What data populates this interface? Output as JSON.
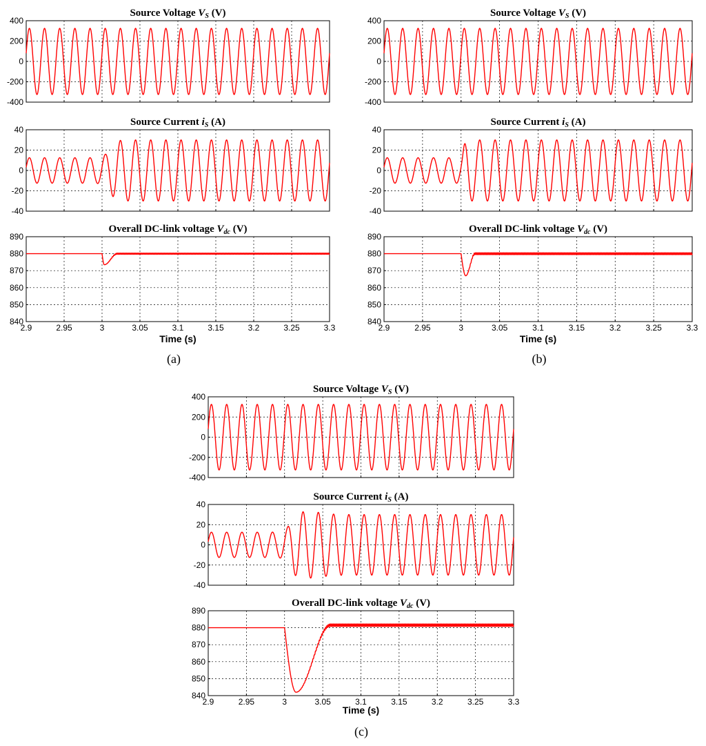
{
  "colors": {
    "trace": "#ff0000",
    "axis": "#000000",
    "grid": "#000000"
  },
  "chart_data": [
    {
      "type": "line",
      "caption": "(a)",
      "xlabel": "Time (s)",
      "xlim": [
        2.9,
        3.3
      ],
      "xticks": [
        "2.9",
        "2.95",
        "3",
        "3.05",
        "3.1",
        "3.15",
        "3.2",
        "3.25",
        "3.3"
      ],
      "grid": true,
      "subplots": [
        {
          "title_pre": "Source Voltage ",
          "title_var": "V",
          "title_sub": "S",
          "title_post": " (V)",
          "ylim": [
            -400,
            400
          ],
          "yticks": [
            "400",
            "200",
            "0",
            "-200",
            "-400"
          ],
          "series": {
            "kind": "sine",
            "freq_hz": 50,
            "amplitude": 325
          }
        },
        {
          "title_pre": "Source Current ",
          "title_var": "i",
          "title_sub": "S",
          "title_post": " (A)",
          "ylim": [
            -40,
            40
          ],
          "yticks": [
            "40",
            "20",
            "0",
            "-20",
            "-40"
          ],
          "series": {
            "kind": "sine_step",
            "freq_hz": 50,
            "amplitude_before": 12.5,
            "amplitude_after": 30,
            "step_time": 3.0,
            "rise_time": 0.02
          }
        },
        {
          "title_pre": "Overall DC-link voltage ",
          "title_var": "V",
          "title_sub": "dc",
          "title_post": " (V)",
          "ylim": [
            840,
            890
          ],
          "yticks": [
            "890",
            "880",
            "870",
            "860",
            "850",
            "840"
          ],
          "series": {
            "kind": "dip",
            "nominal": 880,
            "step_time": 3.0,
            "min_value": 873.5,
            "min_time": 3.003,
            "recovery_time": 3.02,
            "ripple": 0.4
          }
        }
      ]
    },
    {
      "type": "line",
      "caption": "(b)",
      "xlabel": "Time (s)",
      "xlim": [
        2.9,
        3.3
      ],
      "xticks": [
        "2.9",
        "2.95",
        "3",
        "3.05",
        "3.1",
        "3.15",
        "3.2",
        "3.25",
        "3.3"
      ],
      "grid": true,
      "subplots": [
        {
          "title_pre": "Source Voltage ",
          "title_var": "V",
          "title_sub": "S",
          "title_post": " (V)",
          "ylim": [
            -400,
            400
          ],
          "yticks": [
            "400",
            "200",
            "0",
            "-200",
            "-400"
          ],
          "series": {
            "kind": "sine",
            "freq_hz": 50,
            "amplitude": 325
          }
        },
        {
          "title_pre": "Source Current ",
          "title_var": "i",
          "title_sub": "S",
          "title_post": " (A)",
          "ylim": [
            -40,
            40
          ],
          "yticks": [
            "40",
            "20",
            "0",
            "-20",
            "-40"
          ],
          "series": {
            "kind": "sine_step",
            "freq_hz": 50,
            "amplitude_before": 12.5,
            "amplitude_after": 30,
            "step_time": 3.0,
            "rise_time": 0.006
          }
        },
        {
          "title_pre": "Overall DC-link voltage ",
          "title_var": "V",
          "title_sub": "dc",
          "title_post": " (V)",
          "ylim": [
            840,
            890
          ],
          "yticks": [
            "890",
            "880",
            "870",
            "860",
            "850",
            "840"
          ],
          "series": {
            "kind": "dip",
            "nominal": 880,
            "step_time": 3.0,
            "min_value": 867,
            "min_time": 3.006,
            "recovery_time": 3.018,
            "ripple": 0.6
          }
        }
      ]
    },
    {
      "type": "line",
      "caption": "(c)",
      "xlabel": "Time (s)",
      "xlim": [
        2.9,
        3.3
      ],
      "xticks": [
        "2.9",
        "2.95",
        "3",
        "3.05",
        "3.1",
        "3.15",
        "3.2",
        "3.25",
        "3.3"
      ],
      "grid": true,
      "subplots": [
        {
          "title_pre": "Source Voltage ",
          "title_var": "V",
          "title_sub": "S",
          "title_post": " (V)",
          "ylim": [
            -400,
            400
          ],
          "yticks": [
            "400",
            "200",
            "0",
            "-200",
            "-400"
          ],
          "series": {
            "kind": "sine",
            "freq_hz": 50,
            "amplitude": 325
          }
        },
        {
          "title_pre": "Source Current ",
          "title_var": "i",
          "title_sub": "S",
          "title_post": " (A)",
          "ylim": [
            -40,
            40
          ],
          "yticks": [
            "40",
            "20",
            "0",
            "-20",
            "-40"
          ],
          "series": {
            "kind": "sine_step",
            "freq_hz": 50,
            "amplitude_before": 12.5,
            "amplitude_after": 30,
            "peak_after": 33,
            "step_time": 3.0,
            "rise_time": 0.015
          }
        },
        {
          "title_pre": "Overall DC-link voltage ",
          "title_var": "V",
          "title_sub": "dc",
          "title_post": " (V)",
          "ylim": [
            840,
            890
          ],
          "yticks": [
            "890",
            "880",
            "870",
            "860",
            "850",
            "840"
          ],
          "series": {
            "kind": "dip",
            "nominal": 880,
            "final": 881.5,
            "step_time": 3.0,
            "min_value": 842,
            "min_time": 3.015,
            "recovery_time": 3.06,
            "ripple": 0.8
          }
        }
      ]
    }
  ]
}
